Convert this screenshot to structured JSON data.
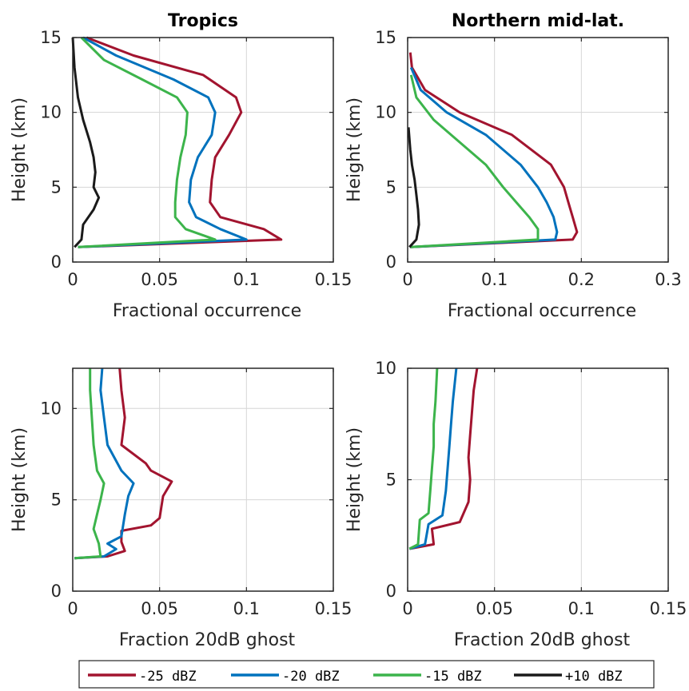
{
  "colors": {
    "-25 dBZ": "#a2142f",
    "-20 dBZ": "#0072bd",
    "-15 dBZ": "#3cb44b",
    "+10 dBZ": "#1a1a1a"
  },
  "legend": {
    "placement": "bottom",
    "entries": [
      "-25 dBZ",
      "-20 dBZ",
      "-15 dBZ",
      "+10 dBZ"
    ]
  },
  "chart_data": [
    {
      "id": "p1",
      "type": "line",
      "title": "Tropics",
      "xlabel": "Fractional occurrence",
      "ylabel": "Height (km)",
      "xlim": [
        0,
        0.15
      ],
      "ylim": [
        0,
        15
      ],
      "xticks": [
        0,
        0.05,
        0.1,
        0.15
      ],
      "xticklabels": [
        "0",
        "0.05",
        "0.1",
        "0.15"
      ],
      "yticks": [
        0,
        5,
        10,
        15
      ],
      "yticklabels": [
        "0",
        "5",
        "10",
        "15"
      ],
      "grid": true,
      "series": [
        {
          "name": "-25 dBZ",
          "points": [
            [
              0.003,
              1.0
            ],
            [
              0.12,
              1.5
            ],
            [
              0.11,
              2.2
            ],
            [
              0.085,
              3.0
            ],
            [
              0.079,
              4.0
            ],
            [
              0.08,
              5.5
            ],
            [
              0.082,
              7.0
            ],
            [
              0.09,
              8.5
            ],
            [
              0.097,
              10.0
            ],
            [
              0.094,
              11.0
            ],
            [
              0.075,
              12.5
            ],
            [
              0.035,
              13.8
            ],
            [
              0.008,
              15.0
            ]
          ]
        },
        {
          "name": "-20 dBZ",
          "points": [
            [
              0.003,
              1.0
            ],
            [
              0.1,
              1.5
            ],
            [
              0.085,
              2.2
            ],
            [
              0.071,
              3.0
            ],
            [
              0.067,
              4.0
            ],
            [
              0.068,
              5.5
            ],
            [
              0.072,
              7.0
            ],
            [
              0.08,
              8.5
            ],
            [
              0.082,
              10.0
            ],
            [
              0.078,
              11.0
            ],
            [
              0.058,
              12.2
            ],
            [
              0.025,
              13.8
            ],
            [
              0.006,
              15.0
            ]
          ]
        },
        {
          "name": "-15 dBZ",
          "points": [
            [
              0.003,
              1.0
            ],
            [
              0.082,
              1.5
            ],
            [
              0.065,
              2.2
            ],
            [
              0.059,
              3.0
            ],
            [
              0.059,
              4.0
            ],
            [
              0.06,
              5.5
            ],
            [
              0.062,
              7.0
            ],
            [
              0.065,
              8.5
            ],
            [
              0.066,
              10.0
            ],
            [
              0.06,
              11.0
            ],
            [
              0.04,
              12.2
            ],
            [
              0.018,
              13.5
            ],
            [
              0.005,
              15.0
            ]
          ]
        },
        {
          "name": "+10 dBZ",
          "points": [
            [
              0.001,
              1.0
            ],
            [
              0.005,
              1.5
            ],
            [
              0.006,
              2.5
            ],
            [
              0.012,
              3.5
            ],
            [
              0.015,
              4.3
            ],
            [
              0.012,
              5.0
            ],
            [
              0.013,
              6.0
            ],
            [
              0.012,
              7.0
            ],
            [
              0.01,
              8.0
            ],
            [
              0.006,
              9.5
            ],
            [
              0.003,
              11.0
            ],
            [
              0.001,
              13.0
            ],
            [
              0.0,
              15.0
            ]
          ]
        }
      ]
    },
    {
      "id": "p2",
      "type": "line",
      "title": "Northern mid-lat.",
      "xlabel": "Fractional occurrence",
      "ylabel": "Height (km)",
      "xlim": [
        0,
        0.3
      ],
      "ylim": [
        0,
        15
      ],
      "xticks": [
        0,
        0.1,
        0.2,
        0.3
      ],
      "xticklabels": [
        "0",
        "0.1",
        "0.2",
        "0.3"
      ],
      "yticks": [
        0,
        5,
        10,
        15
      ],
      "yticklabels": [
        "0",
        "5",
        "10",
        "15"
      ],
      "grid": true,
      "series": [
        {
          "name": "-25 dBZ",
          "points": [
            [
              0.003,
              1.0
            ],
            [
              0.19,
              1.5
            ],
            [
              0.195,
              2.0
            ],
            [
              0.19,
              3.0
            ],
            [
              0.185,
              4.0
            ],
            [
              0.18,
              5.0
            ],
            [
              0.165,
              6.5
            ],
            [
              0.12,
              8.5
            ],
            [
              0.06,
              10.0
            ],
            [
              0.02,
              11.5
            ],
            [
              0.005,
              13.0
            ],
            [
              0.003,
              14.0
            ]
          ]
        },
        {
          "name": "-20 dBZ",
          "points": [
            [
              0.003,
              1.0
            ],
            [
              0.17,
              1.5
            ],
            [
              0.172,
              2.0
            ],
            [
              0.168,
              3.0
            ],
            [
              0.16,
              4.0
            ],
            [
              0.15,
              5.0
            ],
            [
              0.13,
              6.5
            ],
            [
              0.09,
              8.5
            ],
            [
              0.045,
              10.0
            ],
            [
              0.015,
              11.5
            ],
            [
              0.004,
              13.0
            ]
          ]
        },
        {
          "name": "-15 dBZ",
          "points": [
            [
              0.003,
              1.0
            ],
            [
              0.15,
              1.5
            ],
            [
              0.15,
              2.2
            ],
            [
              0.14,
              3.0
            ],
            [
              0.125,
              4.0
            ],
            [
              0.11,
              5.0
            ],
            [
              0.09,
              6.5
            ],
            [
              0.06,
              8.0
            ],
            [
              0.03,
              9.5
            ],
            [
              0.01,
              11.0
            ],
            [
              0.004,
              12.5
            ]
          ]
        },
        {
          "name": "+10 dBZ",
          "points": [
            [
              0.002,
              1.0
            ],
            [
              0.01,
              1.5
            ],
            [
              0.013,
              2.5
            ],
            [
              0.012,
              3.5
            ],
            [
              0.01,
              4.5
            ],
            [
              0.008,
              5.5
            ],
            [
              0.005,
              6.5
            ],
            [
              0.003,
              7.5
            ],
            [
              0.001,
              9.0
            ]
          ]
        }
      ]
    },
    {
      "id": "p3",
      "type": "line",
      "title": "",
      "xlabel": "Fraction 20dB ghost",
      "ylabel": "Height (km)",
      "xlim": [
        0,
        0.15
      ],
      "ylim": [
        0,
        12.2
      ],
      "xticks": [
        0,
        0.05,
        0.1,
        0.15
      ],
      "xticklabels": [
        "0",
        "0.05",
        "0.1",
        "0.15"
      ],
      "yticks": [
        0,
        5,
        10
      ],
      "yticklabels": [
        "0",
        "5",
        "10"
      ],
      "grid": true,
      "series": [
        {
          "name": "-25 dBZ",
          "points": [
            [
              0.001,
              1.8
            ],
            [
              0.02,
              1.9
            ],
            [
              0.03,
              2.2
            ],
            [
              0.028,
              2.7
            ],
            [
              0.028,
              3.3
            ],
            [
              0.045,
              3.6
            ],
            [
              0.05,
              4.0
            ],
            [
              0.052,
              5.2
            ],
            [
              0.057,
              6.0
            ],
            [
              0.045,
              6.6
            ],
            [
              0.042,
              7.0
            ],
            [
              0.028,
              8.0
            ],
            [
              0.03,
              9.5
            ],
            [
              0.028,
              11.0
            ],
            [
              0.027,
              12.2
            ]
          ]
        },
        {
          "name": "-20 dBZ",
          "points": [
            [
              0.001,
              1.8
            ],
            [
              0.018,
              1.9
            ],
            [
              0.025,
              2.3
            ],
            [
              0.02,
              2.6
            ],
            [
              0.028,
              3.0
            ],
            [
              0.03,
              4.2
            ],
            [
              0.032,
              5.2
            ],
            [
              0.035,
              5.9
            ],
            [
              0.028,
              6.6
            ],
            [
              0.02,
              8.0
            ],
            [
              0.018,
              9.5
            ],
            [
              0.016,
              11.0
            ],
            [
              0.017,
              12.2
            ]
          ]
        },
        {
          "name": "-15 dBZ",
          "points": [
            [
              0.001,
              1.8
            ],
            [
              0.016,
              1.9
            ],
            [
              0.015,
              2.6
            ],
            [
              0.012,
              3.4
            ],
            [
              0.014,
              4.2
            ],
            [
              0.016,
              5.0
            ],
            [
              0.018,
              5.9
            ],
            [
              0.014,
              6.6
            ],
            [
              0.012,
              8.0
            ],
            [
              0.011,
              9.5
            ],
            [
              0.01,
              11.0
            ],
            [
              0.01,
              12.2
            ]
          ]
        }
      ]
    },
    {
      "id": "p4",
      "type": "line",
      "title": "",
      "xlabel": "Fraction 20dB ghost",
      "ylabel": "Height (km)",
      "xlim": [
        0,
        0.15
      ],
      "ylim": [
        0,
        10
      ],
      "xticks": [
        0,
        0.05,
        0.1,
        0.15
      ],
      "xticklabels": [
        "0",
        "0.05",
        "0.1",
        "0.15"
      ],
      "yticks": [
        0,
        5,
        10
      ],
      "yticklabels": [
        "0",
        "5",
        "10"
      ],
      "grid": true,
      "series": [
        {
          "name": "-25 dBZ",
          "points": [
            [
              0.001,
              1.9
            ],
            [
              0.015,
              2.1
            ],
            [
              0.014,
              2.8
            ],
            [
              0.03,
              3.1
            ],
            [
              0.035,
              4.0
            ],
            [
              0.036,
              5.0
            ],
            [
              0.035,
              6.0
            ],
            [
              0.036,
              7.0
            ],
            [
              0.037,
              8.0
            ],
            [
              0.038,
              9.0
            ],
            [
              0.04,
              10.0
            ]
          ]
        },
        {
          "name": "-20 dBZ",
          "points": [
            [
              0.001,
              1.9
            ],
            [
              0.01,
              2.1
            ],
            [
              0.012,
              3.0
            ],
            [
              0.02,
              3.4
            ],
            [
              0.022,
              4.5
            ],
            [
              0.023,
              5.5
            ],
            [
              0.024,
              6.5
            ],
            [
              0.025,
              7.5
            ],
            [
              0.026,
              8.5
            ],
            [
              0.028,
              10.0
            ]
          ]
        },
        {
          "name": "-15 dBZ",
          "points": [
            [
              0.001,
              1.9
            ],
            [
              0.006,
              2.1
            ],
            [
              0.007,
              3.2
            ],
            [
              0.012,
              3.5
            ],
            [
              0.013,
              4.5
            ],
            [
              0.014,
              5.5
            ],
            [
              0.015,
              6.5
            ],
            [
              0.015,
              7.5
            ],
            [
              0.016,
              8.5
            ],
            [
              0.017,
              10.0
            ]
          ]
        }
      ]
    }
  ]
}
